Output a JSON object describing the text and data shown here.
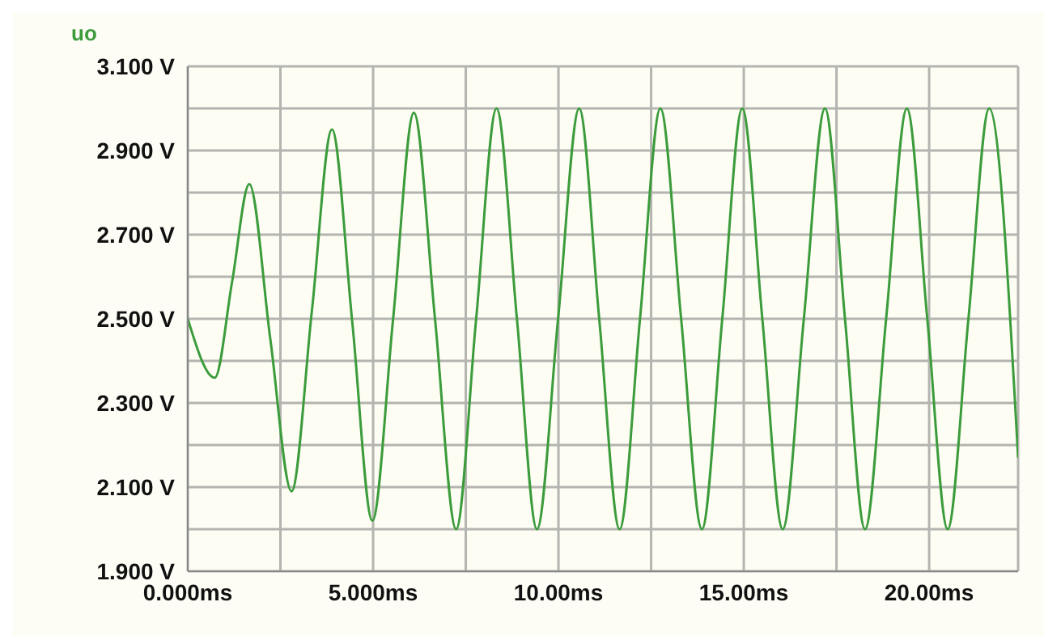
{
  "chart_data": {
    "type": "line",
    "legend": "top left",
    "grid": true,
    "marker": "none",
    "line_style": "solid",
    "xlim": [
      0,
      22.4
    ],
    "xticks": [
      {
        "value": 0,
        "label": "0.000ms"
      },
      {
        "value": 2.5,
        "label": null
      },
      {
        "value": 5,
        "label": "5.000ms"
      },
      {
        "value": 7.5,
        "label": null
      },
      {
        "value": 10,
        "label": "10.00ms"
      },
      {
        "value": 12.5,
        "label": null
      },
      {
        "value": 15,
        "label": "15.00ms"
      },
      {
        "value": 17.5,
        "label": null
      },
      {
        "value": 20,
        "label": "20.00ms"
      }
    ],
    "ylim": [
      1.9,
      3.1
    ],
    "yticks": [
      {
        "value": 1.9,
        "label": "1.900 V"
      },
      {
        "value": 2.0,
        "label": null
      },
      {
        "value": 2.1,
        "label": "2.100 V"
      },
      {
        "value": 2.2,
        "label": null
      },
      {
        "value": 2.3,
        "label": "2.300 V"
      },
      {
        "value": 2.4,
        "label": null
      },
      {
        "value": 2.5,
        "label": "2.500 V"
      },
      {
        "value": 2.6,
        "label": null
      },
      {
        "value": 2.7,
        "label": "2.700 V"
      },
      {
        "value": 2.8,
        "label": null
      },
      {
        "value": 2.9,
        "label": "2.900 V"
      },
      {
        "value": 3.0,
        "label": null
      },
      {
        "value": 3.1,
        "label": "3.100 V"
      }
    ],
    "series": [
      {
        "name": "uo",
        "color": "#3c9c3c",
        "x": [
          0,
          0.73,
          1.2,
          1.66,
          2.23,
          2.8,
          3.35,
          3.89,
          4.44,
          4.98,
          5.54,
          6.1,
          6.67,
          7.24,
          7.78,
          8.33,
          8.88,
          9.42,
          9.99,
          10.56,
          11.1,
          11.65,
          12.2,
          12.75,
          13.31,
          13.87,
          14.42,
          14.96,
          15.5,
          16.05,
          16.62,
          17.19,
          17.73,
          18.27,
          18.84,
          19.4,
          19.95,
          20.5,
          21.06,
          21.62,
          22.4
        ],
        "values": [
          2.5,
          2.36,
          2.59,
          2.82,
          2.45,
          2.09,
          2.52,
          2.95,
          2.49,
          2.02,
          2.5,
          2.99,
          2.5,
          2.0,
          2.5,
          3.0,
          2.5,
          2.0,
          2.5,
          3.0,
          2.5,
          2.0,
          2.5,
          3.0,
          2.5,
          2.0,
          2.5,
          3.0,
          2.5,
          2.0,
          2.5,
          3.0,
          2.5,
          2.0,
          2.5,
          3.0,
          2.5,
          2.0,
          2.5,
          3.0,
          2.17
        ]
      }
    ]
  }
}
